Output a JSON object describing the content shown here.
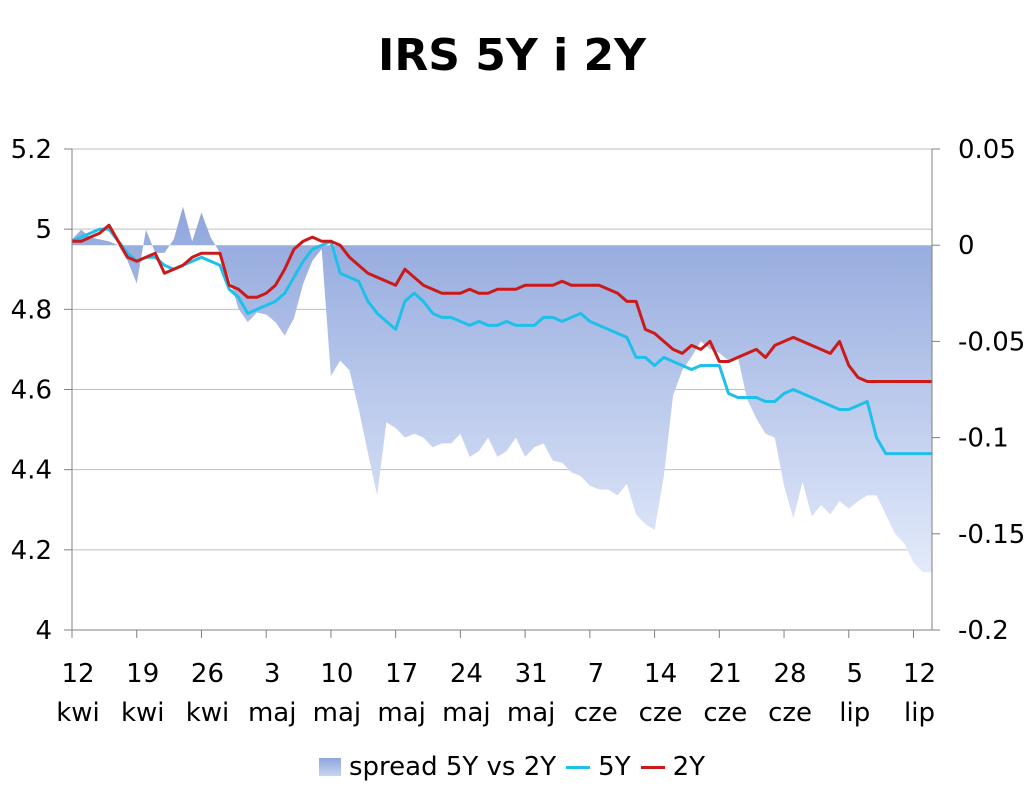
{
  "chart_data": {
    "type": "line",
    "title": "IRS 5Y i 2Y",
    "y_left": {
      "ylim": [
        4.0,
        5.2
      ],
      "ticks": [
        "4",
        "4.2",
        "4.4",
        "4.6",
        "4.8",
        "5",
        "5.2"
      ]
    },
    "y_right": {
      "ylim": [
        -0.2,
        0.05
      ],
      "ticks": [
        "-0.2",
        "-0.15",
        "-0.1",
        "-0.05",
        "0",
        "0.05"
      ]
    },
    "x_ticks": [
      {
        "day": "12",
        "month": "kwi"
      },
      {
        "day": "19",
        "month": "kwi"
      },
      {
        "day": "26",
        "month": "kwi"
      },
      {
        "day": "3",
        "month": "maj"
      },
      {
        "day": "10",
        "month": "maj"
      },
      {
        "day": "17",
        "month": "maj"
      },
      {
        "day": "24",
        "month": "maj"
      },
      {
        "day": "31",
        "month": "maj"
      },
      {
        "day": "7",
        "month": "cze"
      },
      {
        "day": "14",
        "month": "cze"
      },
      {
        "day": "21",
        "month": "cze"
      },
      {
        "day": "28",
        "month": "cze"
      },
      {
        "day": "5",
        "month": "lip"
      },
      {
        "day": "12",
        "month": "lip"
      }
    ],
    "grid": true,
    "legend_position": "bottom",
    "x_range_days": [
      0,
      93
    ],
    "series": [
      {
        "name": "spread 5Y vs 2Y",
        "kind": "area",
        "axis": "right",
        "color": "#8fa6dc",
        "x": [
          0,
          1,
          2,
          3,
          4,
          5,
          6,
          7,
          8,
          9,
          10,
          11,
          12,
          13,
          14,
          15,
          16,
          17,
          18,
          19,
          20,
          21,
          22,
          23,
          24,
          25,
          26,
          27,
          28,
          29,
          30,
          31,
          32,
          33,
          34,
          35,
          36,
          37,
          38,
          39,
          40,
          41,
          42,
          43,
          44,
          45,
          46,
          47,
          48,
          49,
          50,
          51,
          52,
          53,
          54,
          55,
          56,
          57,
          58,
          59,
          60,
          61,
          62,
          63,
          64,
          65,
          66,
          67,
          68,
          69,
          70,
          71,
          72,
          73,
          74,
          75,
          76,
          77,
          78,
          79,
          80,
          81,
          82,
          83,
          84,
          85,
          86,
          87,
          88,
          89,
          90,
          91,
          92,
          93
        ],
        "values": [
          0.003,
          0.008,
          0.004,
          0.003,
          0.002,
          0.0,
          -0.008,
          -0.02,
          0.008,
          -0.004,
          -0.004,
          0.003,
          0.02,
          0.002,
          0.017,
          0.004,
          -0.004,
          -0.017,
          -0.033,
          -0.04,
          -0.035,
          -0.036,
          -0.04,
          -0.047,
          -0.038,
          -0.02,
          -0.008,
          -0.002,
          -0.068,
          -0.06,
          -0.065,
          -0.085,
          -0.108,
          -0.13,
          -0.092,
          -0.095,
          -0.1,
          -0.098,
          -0.1,
          -0.105,
          -0.103,
          -0.103,
          -0.098,
          -0.11,
          -0.107,
          -0.1,
          -0.11,
          -0.107,
          -0.1,
          -0.11,
          -0.105,
          -0.103,
          -0.112,
          -0.113,
          -0.118,
          -0.12,
          -0.125,
          -0.127,
          -0.127,
          -0.13,
          -0.124,
          -0.14,
          -0.145,
          -0.148,
          -0.12,
          -0.078,
          -0.065,
          -0.058,
          -0.05,
          -0.054,
          -0.056,
          -0.06,
          -0.058,
          -0.08,
          -0.09,
          -0.098,
          -0.1,
          -0.125,
          -0.142,
          -0.123,
          -0.141,
          -0.135,
          -0.14,
          -0.133,
          -0.137,
          -0.133,
          -0.13,
          -0.13,
          -0.14,
          -0.15,
          -0.155,
          -0.165,
          -0.17,
          -0.17
        ]
      },
      {
        "name": "5Y",
        "kind": "line",
        "axis": "left",
        "color": "#1ec0ea",
        "x": [
          0,
          1,
          2,
          3,
          4,
          5,
          6,
          7,
          8,
          9,
          10,
          11,
          12,
          13,
          14,
          15,
          16,
          17,
          18,
          19,
          20,
          21,
          22,
          23,
          24,
          25,
          26,
          27,
          28,
          29,
          30,
          31,
          32,
          33,
          34,
          35,
          36,
          37,
          38,
          39,
          40,
          41,
          42,
          43,
          44,
          45,
          46,
          47,
          48,
          49,
          50,
          51,
          52,
          53,
          54,
          55,
          56,
          57,
          58,
          59,
          60,
          61,
          62,
          63,
          64,
          65,
          66,
          67,
          68,
          69,
          70,
          71,
          72,
          73,
          74,
          75,
          76,
          77,
          78,
          79,
          80,
          81,
          82,
          83,
          84,
          85,
          86,
          87,
          88,
          89,
          90,
          91,
          92,
          93
        ],
        "values": [
          4.97,
          4.98,
          4.99,
          5.0,
          5.0,
          4.97,
          4.94,
          4.92,
          4.93,
          4.93,
          4.91,
          4.9,
          4.91,
          4.92,
          4.93,
          4.92,
          4.91,
          4.85,
          4.83,
          4.79,
          4.8,
          4.81,
          4.82,
          4.84,
          4.88,
          4.92,
          4.95,
          4.96,
          4.97,
          4.89,
          4.88,
          4.87,
          4.82,
          4.79,
          4.77,
          4.75,
          4.82,
          4.84,
          4.82,
          4.79,
          4.78,
          4.78,
          4.77,
          4.76,
          4.77,
          4.76,
          4.76,
          4.77,
          4.76,
          4.76,
          4.76,
          4.78,
          4.78,
          4.77,
          4.78,
          4.79,
          4.77,
          4.76,
          4.75,
          4.74,
          4.73,
          4.68,
          4.68,
          4.66,
          4.68,
          4.67,
          4.66,
          4.65,
          4.66,
          4.66,
          4.66,
          4.59,
          4.58,
          4.58,
          4.58,
          4.57,
          4.57,
          4.59,
          4.6,
          4.59,
          4.58,
          4.57,
          4.56,
          4.55,
          4.55,
          4.56,
          4.57,
          4.48,
          4.44,
          4.44,
          4.44,
          4.44,
          4.44,
          4.44
        ]
      },
      {
        "name": "2Y",
        "kind": "line",
        "axis": "left",
        "color": "#cc1a1a",
        "x": [
          0,
          1,
          2,
          3,
          4,
          5,
          6,
          7,
          8,
          9,
          10,
          11,
          12,
          13,
          14,
          15,
          16,
          17,
          18,
          19,
          20,
          21,
          22,
          23,
          24,
          25,
          26,
          27,
          28,
          29,
          30,
          31,
          32,
          33,
          34,
          35,
          36,
          37,
          38,
          39,
          40,
          41,
          42,
          43,
          44,
          45,
          46,
          47,
          48,
          49,
          50,
          51,
          52,
          53,
          54,
          55,
          56,
          57,
          58,
          59,
          60,
          61,
          62,
          63,
          64,
          65,
          66,
          67,
          68,
          69,
          70,
          71,
          72,
          73,
          74,
          75,
          76,
          77,
          78,
          79,
          80,
          81,
          82,
          83,
          84,
          85,
          86,
          87,
          88,
          89,
          90,
          91,
          92,
          93
        ],
        "values": [
          4.97,
          4.97,
          4.98,
          4.99,
          5.01,
          4.97,
          4.93,
          4.92,
          4.93,
          4.94,
          4.89,
          4.9,
          4.91,
          4.93,
          4.94,
          4.94,
          4.94,
          4.86,
          4.85,
          4.83,
          4.83,
          4.84,
          4.86,
          4.9,
          4.95,
          4.97,
          4.98,
          4.97,
          4.97,
          4.96,
          4.93,
          4.91,
          4.89,
          4.88,
          4.87,
          4.86,
          4.9,
          4.88,
          4.86,
          4.85,
          4.84,
          4.84,
          4.84,
          4.85,
          4.84,
          4.84,
          4.85,
          4.85,
          4.85,
          4.86,
          4.86,
          4.86,
          4.86,
          4.87,
          4.86,
          4.86,
          4.86,
          4.86,
          4.85,
          4.84,
          4.82,
          4.82,
          4.75,
          4.74,
          4.72,
          4.7,
          4.69,
          4.71,
          4.7,
          4.72,
          4.67,
          4.67,
          4.68,
          4.69,
          4.7,
          4.68,
          4.71,
          4.72,
          4.73,
          4.72,
          4.71,
          4.7,
          4.69,
          4.72,
          4.66,
          4.63,
          4.62,
          4.62,
          4.62,
          4.62,
          4.62,
          4.62,
          4.62,
          4.62
        ]
      }
    ]
  }
}
